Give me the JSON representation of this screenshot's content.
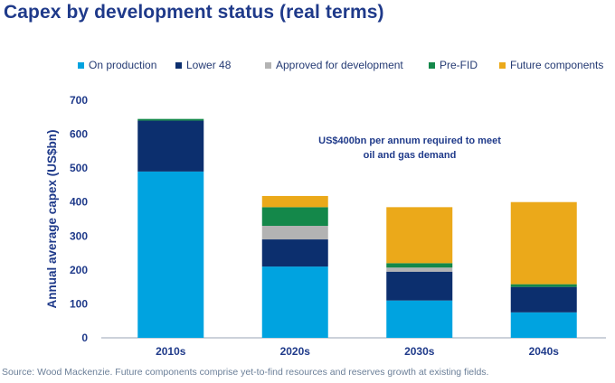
{
  "title": "Capex by development status (real terms)",
  "source_note": "Source: Wood Mackenzie. Future components comprise yet-to-find resources and reserves growth at existing fields.",
  "chart_data": {
    "type": "bar",
    "stacked": true,
    "categories": [
      "2010s",
      "2020s",
      "2030s",
      "2040s"
    ],
    "series": [
      {
        "name": "On production",
        "color": "#00a3e0",
        "values": [
          490,
          210,
          110,
          75
        ]
      },
      {
        "name": "Lower 48",
        "color": "#0c2f6e",
        "values": [
          150,
          80,
          85,
          75
        ]
      },
      {
        "name": "Approved for development",
        "color": "#b3b3b3",
        "values": [
          0,
          40,
          12,
          0
        ]
      },
      {
        "name": "Pre-FID",
        "color": "#14884a",
        "values": [
          5,
          55,
          13,
          8
        ]
      },
      {
        "name": "Future components",
        "color": "#eba91a",
        "values": [
          0,
          33,
          165,
          242
        ]
      }
    ],
    "xlabel": "",
    "ylabel": "Annual average capex (US$bn)",
    "ylim": [
      0,
      700
    ],
    "yticks": [
      0,
      100,
      200,
      300,
      400,
      500,
      600,
      700
    ],
    "grid": false,
    "legend_position": "top",
    "annotation": {
      "line1": "US$400bn per annum required to meet",
      "line2": "oil and gas demand"
    }
  }
}
